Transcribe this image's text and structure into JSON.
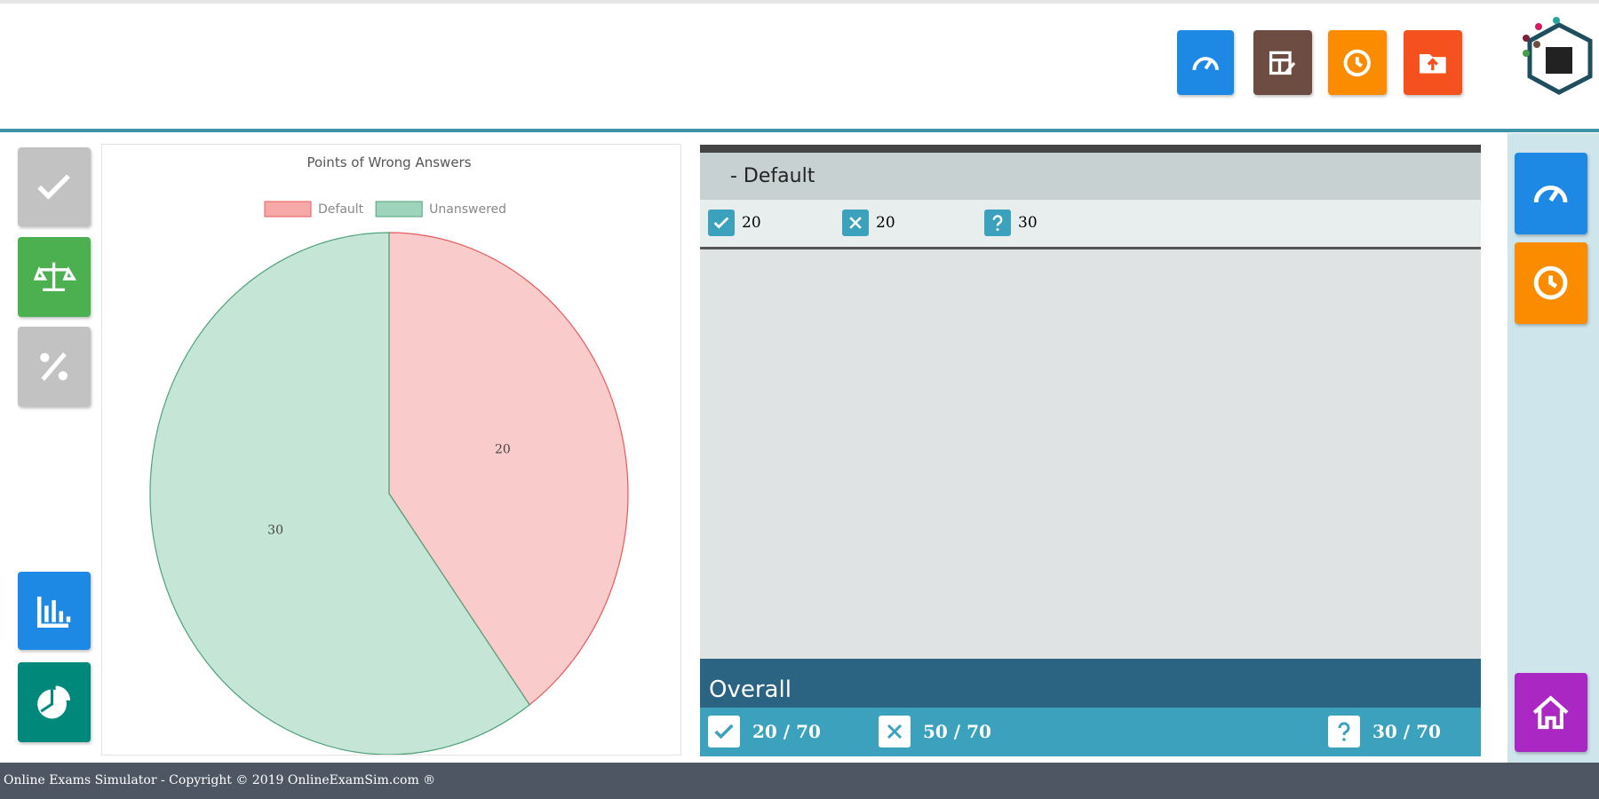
{
  "chart_data": {
    "type": "pie",
    "title": "Points of Wrong Answers",
    "categories": [
      "Default",
      "Unanswered"
    ],
    "values": [
      20,
      30
    ],
    "colors": [
      "#f7a8a8",
      "#9ed4bb"
    ],
    "border_colors": [
      "#e85a5a",
      "#4fa27a"
    ],
    "legend": "top"
  },
  "section": {
    "title": "- Default",
    "correct": "20",
    "wrong": "20",
    "unanswered": "30"
  },
  "overall": {
    "title": "Overall",
    "correct": "20 / 70",
    "wrong": "50 / 70",
    "unanswered": "30 / 70"
  },
  "footer": "Online Exams Simulator - Copyright © 2019 OnlineExamSim.com ®"
}
